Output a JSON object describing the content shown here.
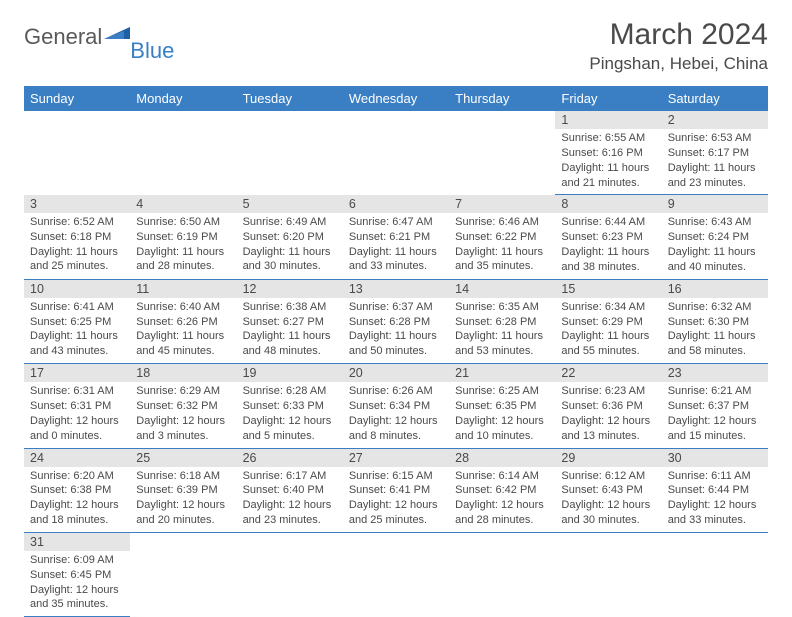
{
  "logo": {
    "general": "General",
    "blue": "Blue"
  },
  "title": "March 2024",
  "location": "Pingshan, Hebei, China",
  "colors": {
    "header_bg": "#3a7fc4",
    "header_text": "#ffffff",
    "daynum_bg": "#e5e5e5",
    "text": "#4a4a4a",
    "border": "#3a7fc4"
  },
  "weekdays": [
    "Sunday",
    "Monday",
    "Tuesday",
    "Wednesday",
    "Thursday",
    "Friday",
    "Saturday"
  ],
  "weeks": [
    [
      null,
      null,
      null,
      null,
      null,
      {
        "n": "1",
        "sr": "Sunrise: 6:55 AM",
        "ss": "Sunset: 6:16 PM",
        "dl1": "Daylight: 11 hours",
        "dl2": "and 21 minutes."
      },
      {
        "n": "2",
        "sr": "Sunrise: 6:53 AM",
        "ss": "Sunset: 6:17 PM",
        "dl1": "Daylight: 11 hours",
        "dl2": "and 23 minutes."
      }
    ],
    [
      {
        "n": "3",
        "sr": "Sunrise: 6:52 AM",
        "ss": "Sunset: 6:18 PM",
        "dl1": "Daylight: 11 hours",
        "dl2": "and 25 minutes."
      },
      {
        "n": "4",
        "sr": "Sunrise: 6:50 AM",
        "ss": "Sunset: 6:19 PM",
        "dl1": "Daylight: 11 hours",
        "dl2": "and 28 minutes."
      },
      {
        "n": "5",
        "sr": "Sunrise: 6:49 AM",
        "ss": "Sunset: 6:20 PM",
        "dl1": "Daylight: 11 hours",
        "dl2": "and 30 minutes."
      },
      {
        "n": "6",
        "sr": "Sunrise: 6:47 AM",
        "ss": "Sunset: 6:21 PM",
        "dl1": "Daylight: 11 hours",
        "dl2": "and 33 minutes."
      },
      {
        "n": "7",
        "sr": "Sunrise: 6:46 AM",
        "ss": "Sunset: 6:22 PM",
        "dl1": "Daylight: 11 hours",
        "dl2": "and 35 minutes."
      },
      {
        "n": "8",
        "sr": "Sunrise: 6:44 AM",
        "ss": "Sunset: 6:23 PM",
        "dl1": "Daylight: 11 hours",
        "dl2": "and 38 minutes."
      },
      {
        "n": "9",
        "sr": "Sunrise: 6:43 AM",
        "ss": "Sunset: 6:24 PM",
        "dl1": "Daylight: 11 hours",
        "dl2": "and 40 minutes."
      }
    ],
    [
      {
        "n": "10",
        "sr": "Sunrise: 6:41 AM",
        "ss": "Sunset: 6:25 PM",
        "dl1": "Daylight: 11 hours",
        "dl2": "and 43 minutes."
      },
      {
        "n": "11",
        "sr": "Sunrise: 6:40 AM",
        "ss": "Sunset: 6:26 PM",
        "dl1": "Daylight: 11 hours",
        "dl2": "and 45 minutes."
      },
      {
        "n": "12",
        "sr": "Sunrise: 6:38 AM",
        "ss": "Sunset: 6:27 PM",
        "dl1": "Daylight: 11 hours",
        "dl2": "and 48 minutes."
      },
      {
        "n": "13",
        "sr": "Sunrise: 6:37 AM",
        "ss": "Sunset: 6:28 PM",
        "dl1": "Daylight: 11 hours",
        "dl2": "and 50 minutes."
      },
      {
        "n": "14",
        "sr": "Sunrise: 6:35 AM",
        "ss": "Sunset: 6:28 PM",
        "dl1": "Daylight: 11 hours",
        "dl2": "and 53 minutes."
      },
      {
        "n": "15",
        "sr": "Sunrise: 6:34 AM",
        "ss": "Sunset: 6:29 PM",
        "dl1": "Daylight: 11 hours",
        "dl2": "and 55 minutes."
      },
      {
        "n": "16",
        "sr": "Sunrise: 6:32 AM",
        "ss": "Sunset: 6:30 PM",
        "dl1": "Daylight: 11 hours",
        "dl2": "and 58 minutes."
      }
    ],
    [
      {
        "n": "17",
        "sr": "Sunrise: 6:31 AM",
        "ss": "Sunset: 6:31 PM",
        "dl1": "Daylight: 12 hours",
        "dl2": "and 0 minutes."
      },
      {
        "n": "18",
        "sr": "Sunrise: 6:29 AM",
        "ss": "Sunset: 6:32 PM",
        "dl1": "Daylight: 12 hours",
        "dl2": "and 3 minutes."
      },
      {
        "n": "19",
        "sr": "Sunrise: 6:28 AM",
        "ss": "Sunset: 6:33 PM",
        "dl1": "Daylight: 12 hours",
        "dl2": "and 5 minutes."
      },
      {
        "n": "20",
        "sr": "Sunrise: 6:26 AM",
        "ss": "Sunset: 6:34 PM",
        "dl1": "Daylight: 12 hours",
        "dl2": "and 8 minutes."
      },
      {
        "n": "21",
        "sr": "Sunrise: 6:25 AM",
        "ss": "Sunset: 6:35 PM",
        "dl1": "Daylight: 12 hours",
        "dl2": "and 10 minutes."
      },
      {
        "n": "22",
        "sr": "Sunrise: 6:23 AM",
        "ss": "Sunset: 6:36 PM",
        "dl1": "Daylight: 12 hours",
        "dl2": "and 13 minutes."
      },
      {
        "n": "23",
        "sr": "Sunrise: 6:21 AM",
        "ss": "Sunset: 6:37 PM",
        "dl1": "Daylight: 12 hours",
        "dl2": "and 15 minutes."
      }
    ],
    [
      {
        "n": "24",
        "sr": "Sunrise: 6:20 AM",
        "ss": "Sunset: 6:38 PM",
        "dl1": "Daylight: 12 hours",
        "dl2": "and 18 minutes."
      },
      {
        "n": "25",
        "sr": "Sunrise: 6:18 AM",
        "ss": "Sunset: 6:39 PM",
        "dl1": "Daylight: 12 hours",
        "dl2": "and 20 minutes."
      },
      {
        "n": "26",
        "sr": "Sunrise: 6:17 AM",
        "ss": "Sunset: 6:40 PM",
        "dl1": "Daylight: 12 hours",
        "dl2": "and 23 minutes."
      },
      {
        "n": "27",
        "sr": "Sunrise: 6:15 AM",
        "ss": "Sunset: 6:41 PM",
        "dl1": "Daylight: 12 hours",
        "dl2": "and 25 minutes."
      },
      {
        "n": "28",
        "sr": "Sunrise: 6:14 AM",
        "ss": "Sunset: 6:42 PM",
        "dl1": "Daylight: 12 hours",
        "dl2": "and 28 minutes."
      },
      {
        "n": "29",
        "sr": "Sunrise: 6:12 AM",
        "ss": "Sunset: 6:43 PM",
        "dl1": "Daylight: 12 hours",
        "dl2": "and 30 minutes."
      },
      {
        "n": "30",
        "sr": "Sunrise: 6:11 AM",
        "ss": "Sunset: 6:44 PM",
        "dl1": "Daylight: 12 hours",
        "dl2": "and 33 minutes."
      }
    ],
    [
      {
        "n": "31",
        "sr": "Sunrise: 6:09 AM",
        "ss": "Sunset: 6:45 PM",
        "dl1": "Daylight: 12 hours",
        "dl2": "and 35 minutes."
      },
      null,
      null,
      null,
      null,
      null,
      null
    ]
  ]
}
